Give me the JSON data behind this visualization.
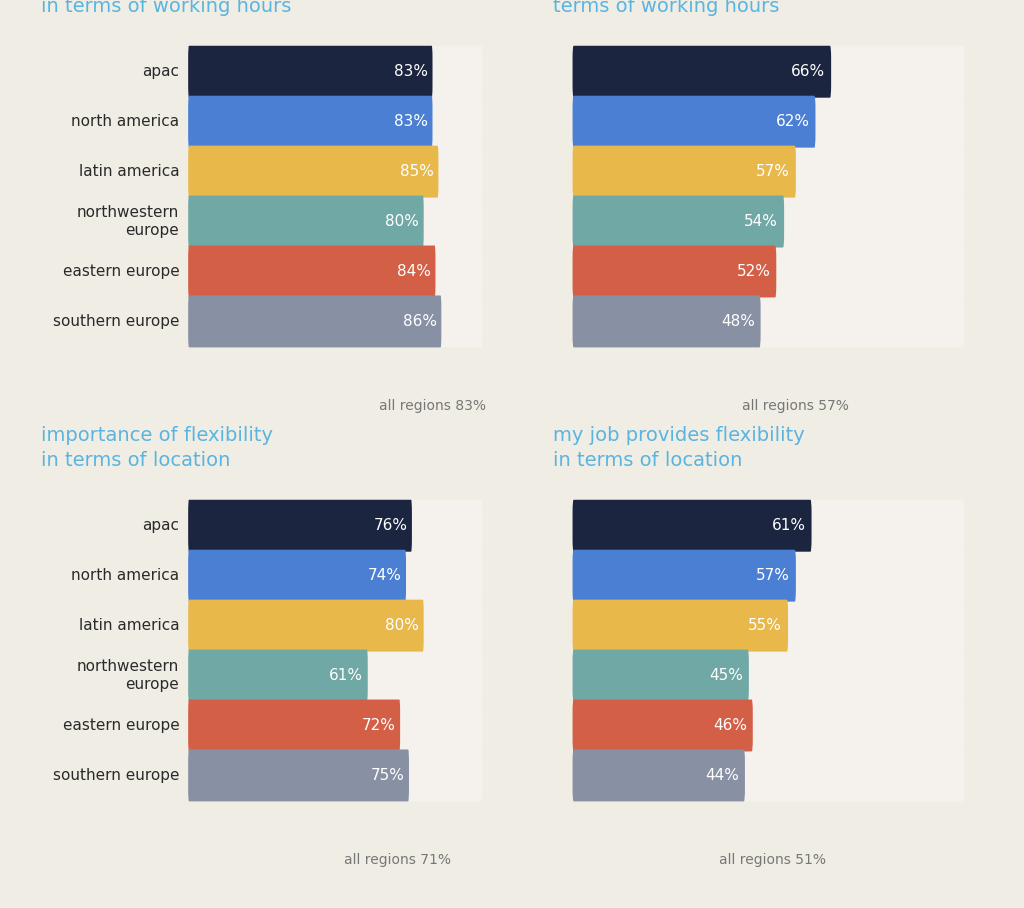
{
  "background_color": "#f0ede5",
  "title_color": "#5ab4e0",
  "label_color": "#2a2a2a",
  "bar_colors": [
    "#1b2540",
    "#4a7fd4",
    "#e8b84b",
    "#6fa8a5",
    "#d45f47",
    "#8890a4"
  ],
  "bg_bar_color": "#f5f2ed",
  "vline_color": "#aaaaaa",
  "all_regions_color": "#777777",
  "label_fontsize": 11,
  "title_fontsize": 14,
  "value_fontsize": 11,
  "all_regions_fontsize": 10,
  "regions": [
    "apac",
    "north america",
    "latin america",
    "northwestern\neurope",
    "eastern europe",
    "southern europe"
  ],
  "charts": [
    {
      "title": "importance of flexibility\nin terms of working hours",
      "values": [
        83,
        83,
        85,
        80,
        84,
        86
      ],
      "all_regions": 83
    },
    {
      "title": "my job provides flexibility in\nterms of working hours",
      "values": [
        66,
        62,
        57,
        54,
        52,
        48
      ],
      "all_regions": 57
    },
    {
      "title": "importance of flexibility\nin terms of location",
      "values": [
        76,
        74,
        80,
        61,
        72,
        75
      ],
      "all_regions": 71
    },
    {
      "title": "my job provides flexibility\nin terms of location",
      "values": [
        61,
        57,
        55,
        45,
        46,
        44
      ],
      "all_regions": 51
    }
  ]
}
